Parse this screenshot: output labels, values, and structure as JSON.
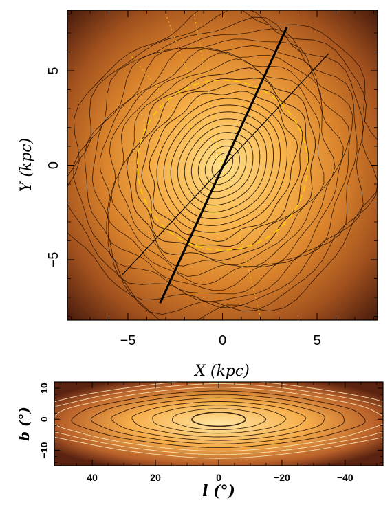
{
  "chart_data": [
    {
      "type": "heatmap",
      "title": "",
      "xlabel": "X (kpc)",
      "ylabel": "Y (kpc)",
      "xlim": [
        -8.2,
        8.2
      ],
      "ylim": [
        -8.2,
        8.2
      ],
      "x_ticks": [
        -5,
        0,
        5
      ],
      "y_ticks": [
        -5,
        0,
        5
      ],
      "x_tick_labels": [
        "−5",
        "0",
        "5"
      ],
      "y_tick_labels": [
        "−5",
        "0",
        "5"
      ],
      "bar_major_axis": {
        "from": [
          -3.3,
          -7.3
        ],
        "to": [
          3.4,
          7.3
        ],
        "style": "thick"
      },
      "line_of_sight": {
        "from": [
          -5.3,
          -5.8
        ],
        "to": [
          5.6,
          5.9
        ],
        "style": "thin"
      },
      "yellow_dashed_circle_radius": 4.5,
      "contour_center": [
        0,
        0
      ],
      "colors": {
        "bright": "#ffd36a",
        "mid": "#e7962e",
        "dark": "#5a2210",
        "contour": "#1a0a00",
        "dashed": "#ffd000"
      }
    },
    {
      "type": "heatmap",
      "title": "",
      "xlabel": "l (°)",
      "ylabel": "b (°)",
      "xlim": [
        52,
        -52
      ],
      "ylim": [
        -15,
        12
      ],
      "x_ticks": [
        40,
        20,
        0,
        -20,
        -40
      ],
      "y_ticks": [
        10,
        0,
        -10
      ],
      "x_tick_labels": [
        "40",
        "20",
        "0",
        "−20",
        "−40"
      ],
      "y_tick_labels": [
        "10",
        "0",
        "−10"
      ],
      "contour_center": [
        0,
        0
      ],
      "colors": {
        "bright": "#ffdc7a",
        "mid": "#e08a2a",
        "dark": "#5a2210",
        "contour": "#1a0a00"
      }
    }
  ]
}
